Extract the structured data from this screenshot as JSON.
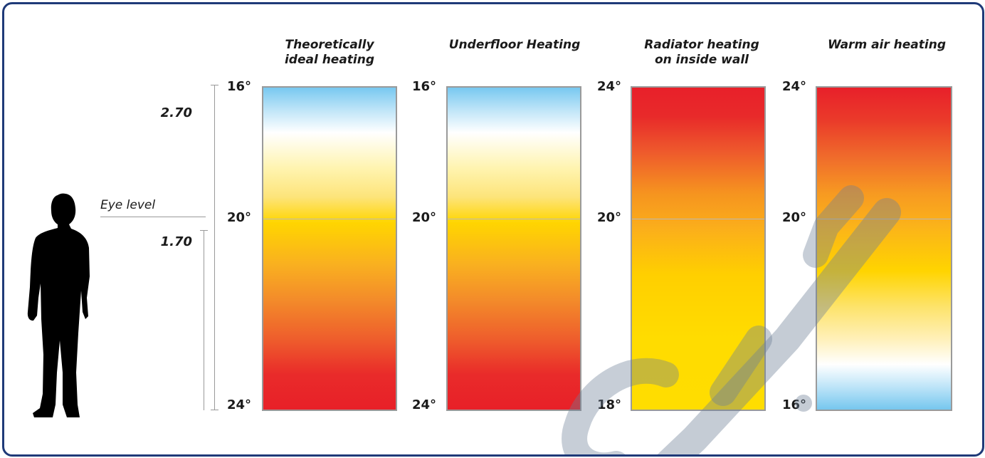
{
  "person": {
    "eye_level_label": "Eye level",
    "height_top_label": "2.70",
    "height_mid_label": "1.70"
  },
  "columns": [
    {
      "title_line1": "Theoretically",
      "title_line2": "ideal heating",
      "top_temp": "16°",
      "mid_temp": "20°",
      "bottom_temp": "24°"
    },
    {
      "title_line1": "Underfloor Heating",
      "title_line2": "",
      "top_temp": "16°",
      "mid_temp": "20°",
      "bottom_temp": "24°"
    },
    {
      "title_line1": "Radiator heating",
      "title_line2": "on inside wall",
      "top_temp": "24°",
      "mid_temp": "20°",
      "bottom_temp": "18°"
    },
    {
      "title_line1": "Warm air heating",
      "title_line2": "",
      "top_temp": "24°",
      "mid_temp": "20°",
      "bottom_temp": "16°"
    }
  ],
  "colors": {
    "border": "#1f3a78",
    "hot": "#e8202a",
    "warm": "#ffd500",
    "cool": "#76c7ee"
  },
  "icons": {
    "person": "person-silhouette-icon"
  }
}
